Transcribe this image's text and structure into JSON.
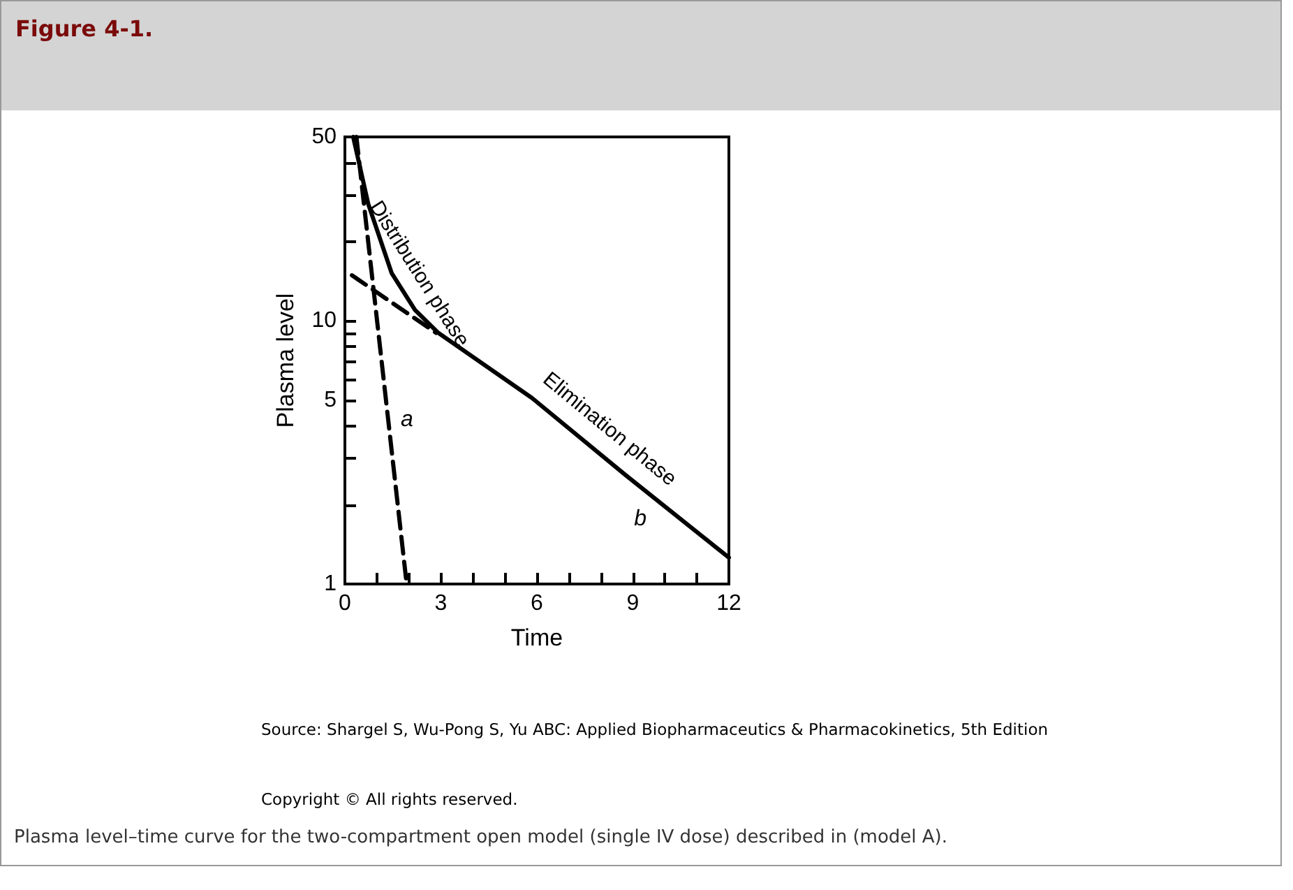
{
  "chart_data": {
    "type": "line",
    "title": "Figure 4-1.",
    "xlabel": "Time",
    "ylabel": "Plasma level",
    "series": [
      {
        "color": "#000000",
        "line_style": "solid",
        "x": [
          0.26,
          0.73,
          1.46,
          2.19,
          2.92,
          5.84,
          8.76,
          12
        ],
        "values": [
          50,
          27.8,
          15.2,
          11,
          9,
          5.1,
          2.6,
          1.26
        ]
      },
      {
        "color": "#000000",
        "line_style": "dashed",
        "x": [
          0.36,
          1.93
        ],
        "values": [
          50,
          1
        ]
      },
      {
        "color": "#000000",
        "line_style": "dashed",
        "x": [
          0.22,
          2.85
        ],
        "values": [
          14.9,
          9
        ]
      }
    ],
    "xlim": [
      0,
      12
    ],
    "xticks": [
      0,
      {
        "value": 1,
        "label": null
      },
      {
        "value": 2,
        "label": null
      },
      3,
      {
        "value": 4,
        "label": null
      },
      {
        "value": 5,
        "label": null
      },
      6,
      {
        "value": 7,
        "label": null
      },
      {
        "value": 8,
        "label": null
      },
      9,
      {
        "value": 10,
        "label": null
      },
      {
        "value": 11,
        "label": null
      },
      12
    ],
    "ylim": [
      1,
      50
    ],
    "yticks": [
      1,
      {
        "value": 2,
        "label": null
      },
      {
        "value": 3,
        "label": null
      },
      {
        "value": 4,
        "label": null
      },
      5,
      {
        "value": 6,
        "label": null
      },
      {
        "value": 7,
        "label": null
      },
      {
        "value": 8,
        "label": null
      },
      {
        "value": 9,
        "label": null
      },
      10,
      {
        "value": 20,
        "label": null
      },
      {
        "value": 30,
        "label": null
      },
      {
        "value": 40,
        "label": null
      },
      50
    ],
    "log": "y",
    "grid": false,
    "marker": "none",
    "annotations": [
      {
        "text": "Distribution phase",
        "x": 1.7,
        "y": 13.5
      },
      {
        "text": "Elimination phase",
        "x": 7.8,
        "y": 3.3
      },
      {
        "text": "a",
        "x": 1.35,
        "y": 4.2
      },
      {
        "text": "b",
        "x": 9.6,
        "y": 2.15
      },
      "Source: Shargel S, Wu-Pong S, Yu ABC: Applied Biopharmaceutics & Pharmacokinetics, 5th Edition",
      "Copyright © All rights reserved.",
      "Plasma level–time curve for the two-compartment open model (single IV dose) described in (model A)."
    ]
  }
}
